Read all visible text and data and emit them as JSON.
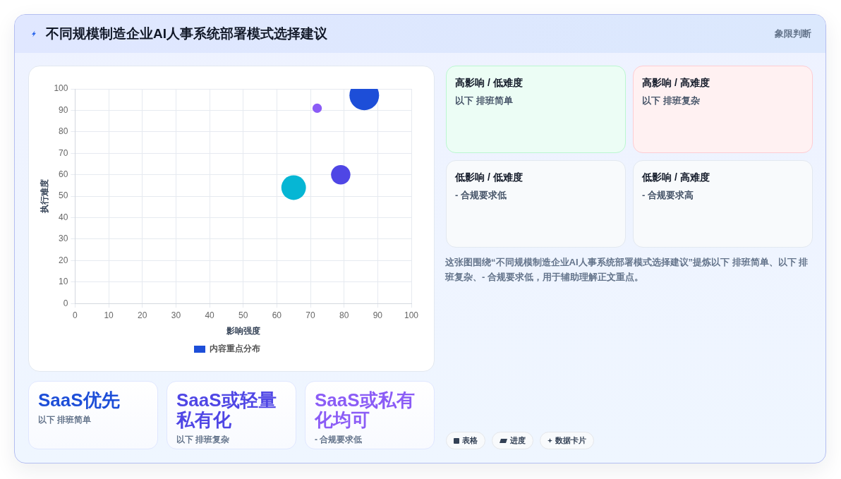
{
  "chart_data": [
    {
      "type": "other",
      "title": "不同规模制造企业AI人事系统部署模式选择建议",
      "subtitle": "象限判断"
    },
    {
      "type": "bubble",
      "xlabel": "影响强度",
      "ylabel": "执行难度",
      "series": [
        {
          "name": "内容重点分布",
          "color": "#1d4ed8",
          "colors": [
            "#1d4ed8",
            "#4f46e5",
            "#8b5cf6",
            "#06b6d4"
          ],
          "x": [
            86,
            79,
            72,
            65
          ],
          "values": [
            97,
            60,
            91,
            54
          ],
          "sizes": [
            1,
            0.43,
            0.1,
            0.69
          ]
        }
      ],
      "xlim": [
        0,
        100
      ],
      "xticks": [
        0,
        10,
        20,
        30,
        40,
        50,
        60,
        70,
        80,
        90,
        100
      ],
      "ylim": [
        0,
        100
      ],
      "yticks": [
        0,
        10,
        20,
        30,
        40,
        50,
        60,
        70,
        80,
        90,
        100
      ],
      "grid": true,
      "legend": "bottom",
      "marker": "circle"
    },
    {
      "type": "other",
      "title": "高影响 / 低难度",
      "annotations": [
        "以下 排班简单"
      ]
    },
    {
      "type": "other",
      "title": "高影响 / 高难度",
      "annotations": [
        "以下 排班复杂"
      ]
    },
    {
      "type": "other",
      "title": "低影响 / 低难度",
      "annotations": [
        "- 合规要求低"
      ]
    },
    {
      "type": "other",
      "title": "低影响 / 高难度",
      "annotations": [
        "- 合规要求高"
      ]
    },
    {
      "type": "other",
      "annotations": [
        "这张图围绕“不同规模制造企业AI人事系统部署模式选择建议”提炼以下 排班简单、以下 排班复杂、- 合规要求低，用于辅助理解正文重点。"
      ]
    },
    {
      "type": "other",
      "title": "SaaS优先",
      "color": "#1d4ed8",
      "annotations": [
        "以下 排班简单"
      ]
    },
    {
      "type": "other",
      "title": "SaaS或轻量私有化",
      "color": "#4f46e5",
      "annotations": [
        "以下 排班复杂"
      ]
    },
    {
      "type": "other",
      "title": "SaaS或私有化均可",
      "color": "#8b5cf6",
      "annotations": [
        "- 合规要求低"
      ]
    },
    {
      "type": "other",
      "annotations": [
        "表格",
        "进度",
        "数据卡片"
      ]
    }
  ]
}
